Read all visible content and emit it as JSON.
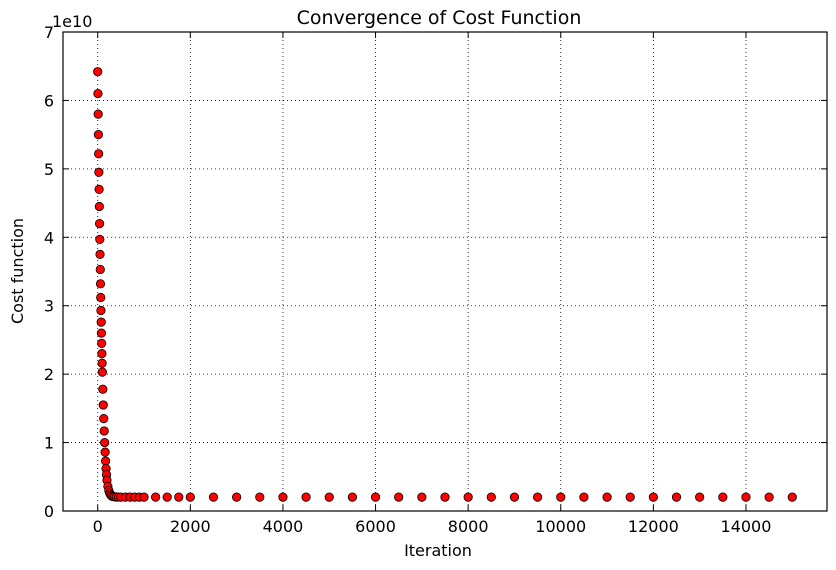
{
  "chart_data": {
    "type": "scatter",
    "title": "Convergence of Cost Function",
    "xlabel": "Iteration",
    "ylabel": "Cost function",
    "y_offset_text": "1e10",
    "xlim": [
      -750,
      15750
    ],
    "ylim": [
      0,
      7
    ],
    "y_scale_factor": 10000000000,
    "xticks": [
      0,
      2000,
      4000,
      6000,
      8000,
      10000,
      12000,
      14000
    ],
    "xtick_labels": [
      "0",
      "2000",
      "4000",
      "6000",
      "8000",
      "10000",
      "12000",
      "14000"
    ],
    "yticks": [
      0,
      1,
      2,
      3,
      4,
      5,
      6,
      7
    ],
    "ytick_labels": [
      "0",
      "1",
      "2",
      "3",
      "4",
      "5",
      "6",
      "7"
    ],
    "grid": true,
    "marker_color": "#ff0000",
    "marker_edge_color": "#000000",
    "series": [
      {
        "x": [
          0,
          5,
          10,
          15,
          20,
          25,
          30,
          35,
          40,
          45,
          50,
          55,
          60,
          65,
          70,
          75,
          80,
          85,
          90,
          95,
          100,
          110,
          120,
          130,
          140,
          150,
          160,
          170,
          180,
          190,
          200,
          220,
          240,
          260,
          280,
          300,
          330,
          360,
          400,
          450,
          500,
          600,
          700,
          800,
          900,
          1000,
          1250,
          1500,
          1750,
          2000,
          2500,
          3000,
          3500,
          4000,
          4500,
          5000,
          5500,
          6000,
          6500,
          7000,
          7500,
          8000,
          8500,
          9000,
          9500,
          10000,
          10500,
          11000,
          11500,
          12000,
          12500,
          13000,
          13500,
          14000,
          14500,
          15000
        ],
        "y": [
          6.42,
          6.1,
          5.8,
          5.5,
          5.22,
          4.95,
          4.7,
          4.45,
          4.2,
          3.97,
          3.75,
          3.53,
          3.32,
          3.12,
          2.93,
          2.76,
          2.6,
          2.45,
          2.3,
          2.16,
          2.03,
          1.78,
          1.55,
          1.35,
          1.17,
          1.0,
          0.86,
          0.73,
          0.62,
          0.53,
          0.45,
          0.36,
          0.3,
          0.26,
          0.235,
          0.22,
          0.212,
          0.208,
          0.205,
          0.204,
          0.203,
          0.203,
          0.203,
          0.203,
          0.203,
          0.203,
          0.203,
          0.203,
          0.203,
          0.203,
          0.203,
          0.203,
          0.203,
          0.203,
          0.203,
          0.203,
          0.203,
          0.203,
          0.203,
          0.203,
          0.203,
          0.203,
          0.203,
          0.203,
          0.203,
          0.203,
          0.203,
          0.203,
          0.203,
          0.203,
          0.203,
          0.203,
          0.203,
          0.203,
          0.203,
          0.203
        ]
      }
    ]
  }
}
